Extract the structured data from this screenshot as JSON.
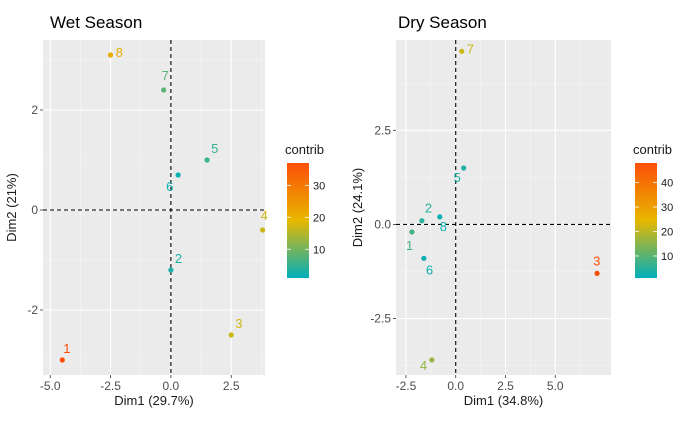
{
  "chart_data": [
    {
      "type": "scatter",
      "title": "Wet Season",
      "xlabel": "Dim1 (29.7%)",
      "ylabel": "Dim2 (21%)",
      "xlim": [
        -5.3,
        3.9
      ],
      "ylim": [
        -3.3,
        3.4
      ],
      "xticks": [
        -5.0,
        -2.5,
        0.0,
        2.5
      ],
      "xtick_labels": [
        "-5.0",
        "-2.5",
        "0.0",
        "2.5"
      ],
      "yticks": [
        -2,
        0,
        2
      ],
      "ytick_labels": [
        "-2",
        "0",
        "2"
      ],
      "grid": true,
      "legend": {
        "title": "contrib",
        "min": 1,
        "max": 37,
        "ticks": [
          10,
          20,
          30
        ],
        "position": "right"
      },
      "points": [
        {
          "label": "1",
          "x": -4.5,
          "y": -3.0,
          "contrib": 37
        },
        {
          "label": "2",
          "x": 0.0,
          "y": -1.2,
          "contrib": 3
        },
        {
          "label": "3",
          "x": 2.5,
          "y": -2.5,
          "contrib": 17
        },
        {
          "label": "4",
          "x": 3.8,
          "y": -0.4,
          "contrib": 17
        },
        {
          "label": "5",
          "x": 1.5,
          "y": 1.0,
          "contrib": 5
        },
        {
          "label": "6",
          "x": 0.3,
          "y": 0.7,
          "contrib": 2
        },
        {
          "label": "7",
          "x": -0.3,
          "y": 2.4,
          "contrib": 8
        },
        {
          "label": "8",
          "x": -2.5,
          "y": 3.1,
          "contrib": 21
        }
      ]
    },
    {
      "type": "scatter",
      "title": "Dry Season",
      "xlabel": "Dim1 (34.8%)",
      "ylabel": "Dim2 (24.1%)",
      "xlim": [
        -3.0,
        7.8
      ],
      "ylim": [
        -4.0,
        4.9
      ],
      "xticks": [
        -2.5,
        0.0,
        2.5,
        5.0
      ],
      "xtick_labels": [
        "-2.5",
        "0.0",
        "2.5",
        "5.0"
      ],
      "yticks": [
        -2.5,
        0.0,
        2.5
      ],
      "ytick_labels": [
        "-2.5",
        "0.0",
        "2.5"
      ],
      "grid": true,
      "legend": {
        "title": "contrib",
        "min": 1,
        "max": 48,
        "ticks": [
          10,
          20,
          30,
          40
        ],
        "position": "right"
      },
      "points": [
        {
          "label": "1",
          "x": -2.2,
          "y": -0.2,
          "contrib": 8
        },
        {
          "label": "2",
          "x": -1.7,
          "y": 0.1,
          "contrib": 5
        },
        {
          "label": "3",
          "x": 7.1,
          "y": -1.3,
          "contrib": 48
        },
        {
          "label": "4",
          "x": -1.2,
          "y": -3.6,
          "contrib": 16
        },
        {
          "label": "5",
          "x": 0.4,
          "y": 1.5,
          "contrib": 4
        },
        {
          "label": "6",
          "x": -1.6,
          "y": -0.9,
          "contrib": 2
        },
        {
          "label": "7",
          "x": 0.3,
          "y": 4.6,
          "contrib": 22
        },
        {
          "label": "8",
          "x": -0.8,
          "y": 0.2,
          "contrib": 2
        }
      ]
    }
  ],
  "colors": {
    "panel_bg": "#ebebeb",
    "grid_major": "#ffffff",
    "grad_low": "#00AFBB",
    "grad_mid": "#E7B800",
    "grad_high": "#FC4E07"
  }
}
